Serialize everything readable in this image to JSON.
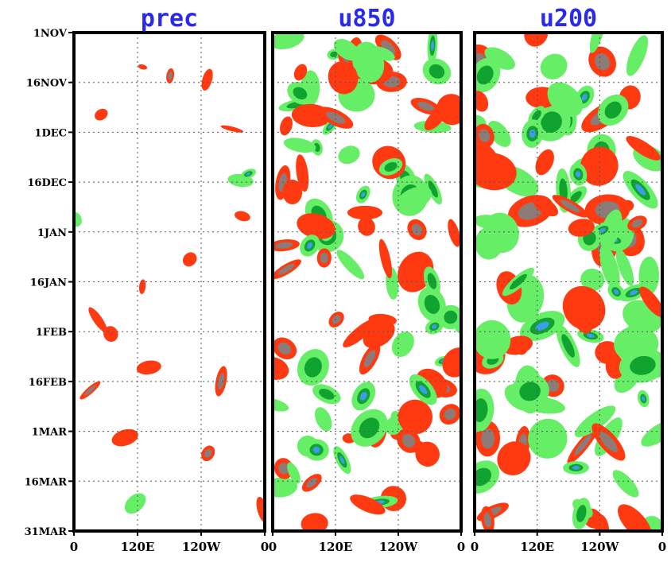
{
  "chart_data": {
    "type": "heatmap",
    "panels": [
      {
        "title": "prec",
        "seed": 11,
        "pos": 0.14,
        "neg": 0.1,
        "scale": 0.8
      },
      {
        "title": "u850",
        "seed": 23,
        "pos": 0.44,
        "neg": 0.3,
        "scale": 1.0
      },
      {
        "title": "u200",
        "seed": 37,
        "pos": 0.4,
        "neg": 0.42,
        "scale": 1.1
      }
    ],
    "y_ticks": [
      "1NOV",
      "16NOV",
      "1DEC",
      "16DEC",
      "1JAN",
      "16JAN",
      "1FEB",
      "16FEB",
      "1MAR",
      "16MAR",
      "31MAR"
    ],
    "x_ticks": [
      "0",
      "120E",
      "120W",
      "0"
    ],
    "colors": {
      "strong_positive": "#8c7b76",
      "positive": "#ff3a10",
      "strong_negative": "#3c9cf0",
      "negative": "#11a32f",
      "weak_negative": "#66ef66",
      "frame": "#000000",
      "title": "#2a2aee"
    }
  }
}
